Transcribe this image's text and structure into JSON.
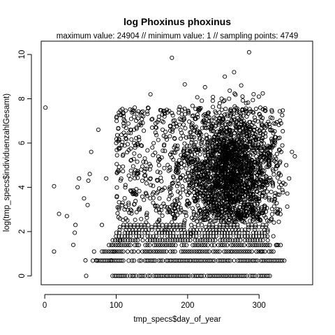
{
  "chart_data": {
    "type": "scatter",
    "title": "log Phoxinus phoxinus",
    "subtitle": "maximum value: 24904  //  minimum value: 1  // sampling points: 4749",
    "xlabel": "tmp_specs$day_of_year",
    "ylabel": "log(tmp_specs$individuenzahlGesamt)",
    "xlim": [
      -5,
      375
    ],
    "ylim": [
      -0.4,
      10.6
    ],
    "xticks": [
      0,
      100,
      200,
      300
    ],
    "yticks": [
      0,
      2,
      4,
      6,
      8,
      10
    ],
    "xtick_labels": [
      "0",
      "100",
      "200",
      "300"
    ],
    "ytick_labels": [
      "0",
      "2",
      "4",
      "6",
      "8",
      "10"
    ],
    "grid": false,
    "legend": "none",
    "marker": "open-circle",
    "marker_color": "#000000",
    "series": [
      {
        "values_note_free": true,
        "points": [
          [
            1,
            7.6
          ],
          [
            13,
            1.1
          ],
          [
            13,
            4.05
          ],
          [
            20,
            2.8
          ],
          [
            31,
            2.7
          ],
          [
            40,
            1.4
          ],
          [
            42,
            1.95
          ],
          [
            43,
            2.3
          ],
          [
            46,
            4.0
          ],
          [
            48,
            4.4
          ],
          [
            55,
            3.5
          ],
          [
            57,
            0.7
          ],
          [
            58,
            0.0
          ],
          [
            60,
            3.2
          ],
          [
            61,
            4.3
          ],
          [
            63,
            4.6
          ],
          [
            65,
            5.6
          ],
          [
            69,
            1.1
          ],
          [
            72,
            0.7
          ],
          [
            75,
            6.6
          ],
          [
            80,
            2.3
          ],
          [
            86,
            4.4
          ],
          [
            93,
            0.7
          ],
          [
            97,
            1.1
          ],
          [
            100,
            6.0
          ],
          [
            105,
            1.6
          ],
          [
            112,
            7.0
          ],
          [
            120,
            6.6
          ],
          [
            126,
            7.6
          ],
          [
            135,
            4.8
          ],
          [
            142,
            3.7
          ],
          [
            148,
            8.2
          ],
          [
            160,
            5.0
          ],
          [
            165,
            6.6
          ],
          [
            170,
            2.1
          ],
          [
            175,
            4.9
          ],
          [
            178,
            9.85
          ],
          [
            182,
            3.4
          ],
          [
            190,
            4.4
          ],
          [
            196,
            8.65
          ],
          [
            205,
            1.9
          ],
          [
            212,
            4.8
          ],
          [
            218,
            2.5
          ],
          [
            225,
            6.9
          ],
          [
            230,
            5.3
          ],
          [
            238,
            3.6
          ],
          [
            245,
            7.8
          ],
          [
            250,
            6.0
          ],
          [
            252,
            9.0
          ],
          [
            258,
            8.0
          ],
          [
            262,
            4.6
          ],
          [
            265,
            9.2
          ],
          [
            270,
            5.2
          ],
          [
            275,
            8.6
          ],
          [
            280,
            6.8
          ],
          [
            286,
            10.1
          ],
          [
            290,
            4.4
          ],
          [
            295,
            3.0
          ],
          [
            300,
            6.2
          ],
          [
            303,
            1.1
          ],
          [
            308,
            5.2
          ],
          [
            312,
            2.0
          ],
          [
            318,
            6.1
          ],
          [
            325,
            1.4
          ],
          [
            328,
            4.0
          ],
          [
            331,
            5.6
          ],
          [
            334,
            4.2
          ],
          [
            338,
            5.0
          ],
          [
            342,
            4.4
          ],
          [
            346,
            5.6
          ],
          [
            350,
            5.4
          ]
        ]
      }
    ],
    "density_bands": [
      {
        "y": 0.0,
        "x_range": [
          95,
          315
        ],
        "step": 2.5
      },
      {
        "y": 0.69,
        "x_range": [
          65,
          335
        ],
        "step": 2.5
      },
      {
        "y": 1.1,
        "x_range": [
          80,
          320
        ],
        "step": 3
      },
      {
        "y": 1.39,
        "x_range": [
          90,
          330
        ],
        "step": 3
      },
      {
        "y": 1.61,
        "x_range": [
          95,
          315
        ],
        "step": 3.5
      },
      {
        "y": 1.79,
        "x_range": [
          100,
          320
        ],
        "step": 4
      },
      {
        "y": 1.95,
        "x_range": [
          100,
          315
        ],
        "step": 4
      },
      {
        "y": 2.08,
        "x_range": [
          105,
          315
        ],
        "step": 4.5
      },
      {
        "y": 2.2,
        "x_range": [
          105,
          310
        ],
        "step": 5
      },
      {
        "y": 2.3,
        "x_range": [
          110,
          310
        ],
        "step": 5
      }
    ],
    "dense_cloud": {
      "x_center": 258,
      "x_spread": 30,
      "y_center": 4.7,
      "y_spread": 1.35,
      "count": 1600
    },
    "sparse_cloud": {
      "x_range": [
        100,
        330
      ],
      "y_range": [
        2.4,
        7.6
      ],
      "count": 900
    }
  }
}
